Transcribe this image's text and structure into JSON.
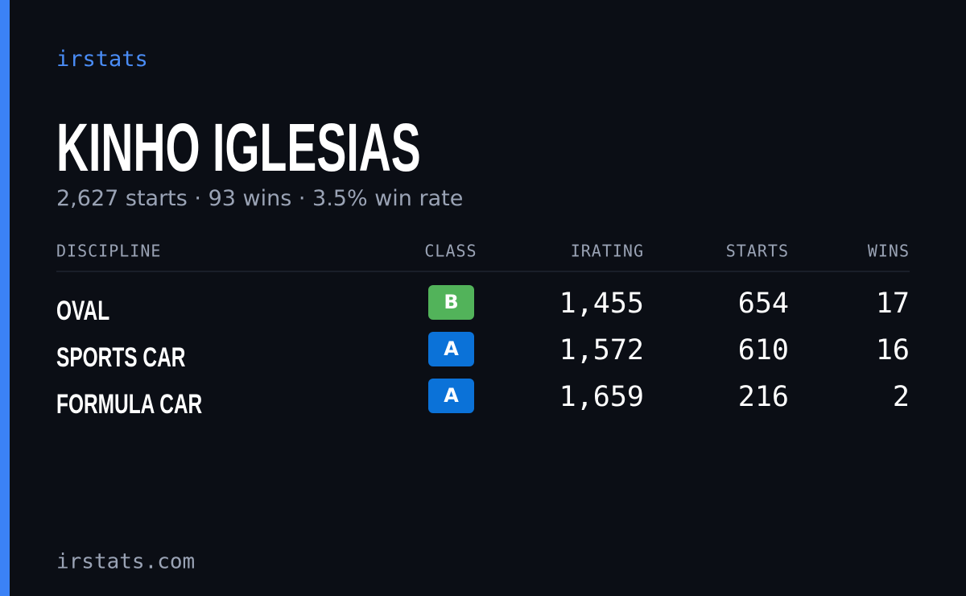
{
  "brand": "irstats",
  "driver": {
    "name": "KINHO IGLESIAS",
    "summary": "2,627 starts · 93 wins · 3.5% win rate"
  },
  "table": {
    "headers": [
      "DISCIPLINE",
      "CLASS",
      "IRATING",
      "STARTS",
      "WINS"
    ],
    "rows": [
      {
        "discipline": "OVAL",
        "class": "B",
        "class_color": "#52b35a",
        "irating": "1,455",
        "starts": "654",
        "wins": "17"
      },
      {
        "discipline": "SPORTS CAR",
        "class": "A",
        "class_color": "#0b72d8",
        "irating": "1,572",
        "starts": "610",
        "wins": "16"
      },
      {
        "discipline": "FORMULA CAR",
        "class": "A",
        "class_color": "#0b72d8",
        "irating": "1,659",
        "starts": "216",
        "wins": "2"
      }
    ]
  },
  "footer": "irstats.com"
}
